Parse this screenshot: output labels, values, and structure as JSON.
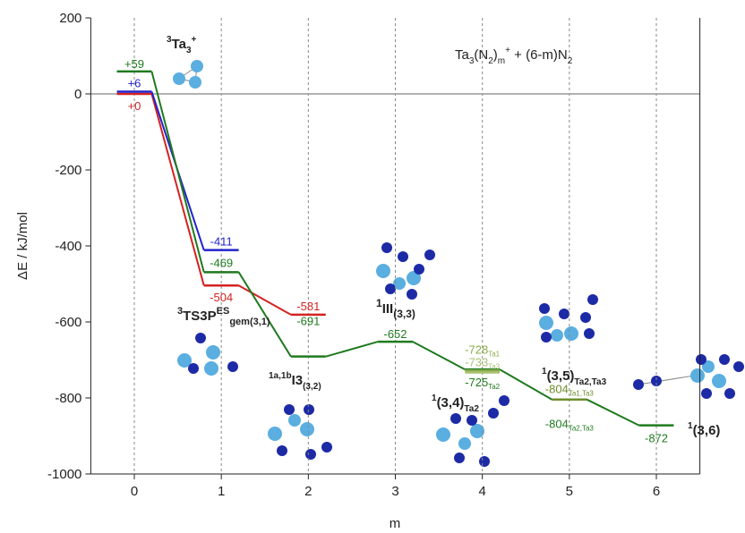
{
  "chart_data": {
    "type": "energy-levels",
    "x_label": "m",
    "y_label": "ΔE / kJ/mol",
    "xlim": [
      -0.5,
      6.5
    ],
    "xticks": [
      0,
      1,
      2,
      3,
      4,
      5,
      6
    ],
    "ylim": [
      -1000,
      200
    ],
    "yticks": [
      200,
      0,
      -200,
      -400,
      -600,
      -800,
      -1000
    ],
    "xgrid": true,
    "zero_line": true,
    "x": [
      0,
      1,
      2,
      3,
      4,
      5,
      6
    ],
    "series": [
      {
        "color": "#d42222",
        "values": [
          0,
          -504,
          -581,
          null,
          null,
          null,
          null
        ],
        "value_labels": [
          "+0",
          null,
          null,
          null,
          null,
          null,
          null
        ]
      },
      {
        "color": "#2323cc",
        "values": [
          6,
          -411,
          null,
          null,
          null,
          null,
          null
        ],
        "value_labels": [
          "+6",
          null,
          null,
          null,
          null,
          null,
          null
        ]
      },
      {
        "color": "#1f7a1f",
        "values": [
          59,
          -469,
          -691,
          -652,
          -725,
          -804,
          -872
        ],
        "value_labels": [
          "+59",
          null,
          null,
          null,
          null,
          null,
          null
        ],
        "value_label_subs": [
          null,
          null,
          null,
          null,
          "Ta2",
          "Ta2,Ta3",
          null
        ]
      },
      {
        "color": "#8aab4c",
        "values": [
          null,
          null,
          null,
          null,
          -728,
          null,
          null
        ],
        "value_label_subs": [
          null,
          null,
          null,
          null,
          "Ta1",
          null,
          null
        ]
      },
      {
        "color": "#a9c273",
        "values": [
          null,
          null,
          null,
          null,
          -733,
          null,
          null
        ],
        "value_label_subs": [
          null,
          null,
          null,
          null,
          "Ta3",
          null,
          null
        ]
      },
      {
        "color": "#6e8c2c",
        "values": [
          null,
          null,
          null,
          null,
          null,
          -804,
          null
        ],
        "value_label_subs": [
          null,
          null,
          null,
          null,
          null,
          "Ta1,Ta3",
          null
        ]
      }
    ],
    "annotations": [
      {
        "bold": true,
        "parts": [
          {
            "text": "3",
            "style": "sup"
          },
          {
            "text": "Ta"
          },
          {
            "text": "3",
            "style": "sub"
          },
          {
            "text": "+",
            "style": "sup"
          }
        ]
      },
      {
        "bold": true,
        "parts": [
          {
            "text": "3",
            "style": "sup"
          },
          {
            "text": "TS3P"
          },
          {
            "text": "ES",
            "style": "sup"
          },
          {
            "text": "gem(3,1)",
            "style": "sub"
          }
        ]
      },
      {
        "bold": true,
        "parts": [
          {
            "text": "1a,1b",
            "style": "sup"
          },
          {
            "text": "I3"
          },
          {
            "text": "(3,2)",
            "style": "sub"
          }
        ]
      },
      {
        "bold": true,
        "parts": [
          {
            "text": "1",
            "style": "sup"
          },
          {
            "text": "III"
          },
          {
            "text": "(3,3)",
            "style": "sub"
          }
        ]
      },
      {
        "bold": true,
        "parts": [
          {
            "text": "1",
            "style": "sup"
          },
          {
            "text": "(3,4)"
          },
          {
            "text": "Ta2",
            "style": "sub"
          }
        ]
      },
      {
        "bold": true,
        "parts": [
          {
            "text": "1",
            "style": "sup"
          },
          {
            "text": "(3,5)"
          },
          {
            "text": "Ta2,Ta3",
            "style": "sub"
          }
        ]
      },
      {
        "bold": true,
        "parts": [
          {
            "text": "1",
            "style": "sup"
          },
          {
            "text": "(3,6)"
          }
        ]
      },
      {
        "bold": false,
        "parts": [
          {
            "text": "Ta"
          },
          {
            "text": "3",
            "style": "sub"
          },
          {
            "text": "(N"
          },
          {
            "text": "2",
            "style": "sub"
          },
          {
            "text": ")"
          },
          {
            "text": "m",
            "style": "sub"
          },
          {
            "text": "+",
            "style": "sup"
          },
          {
            "text": " + (6-m)N"
          },
          {
            "text": "2",
            "style": "sub"
          }
        ]
      }
    ]
  }
}
